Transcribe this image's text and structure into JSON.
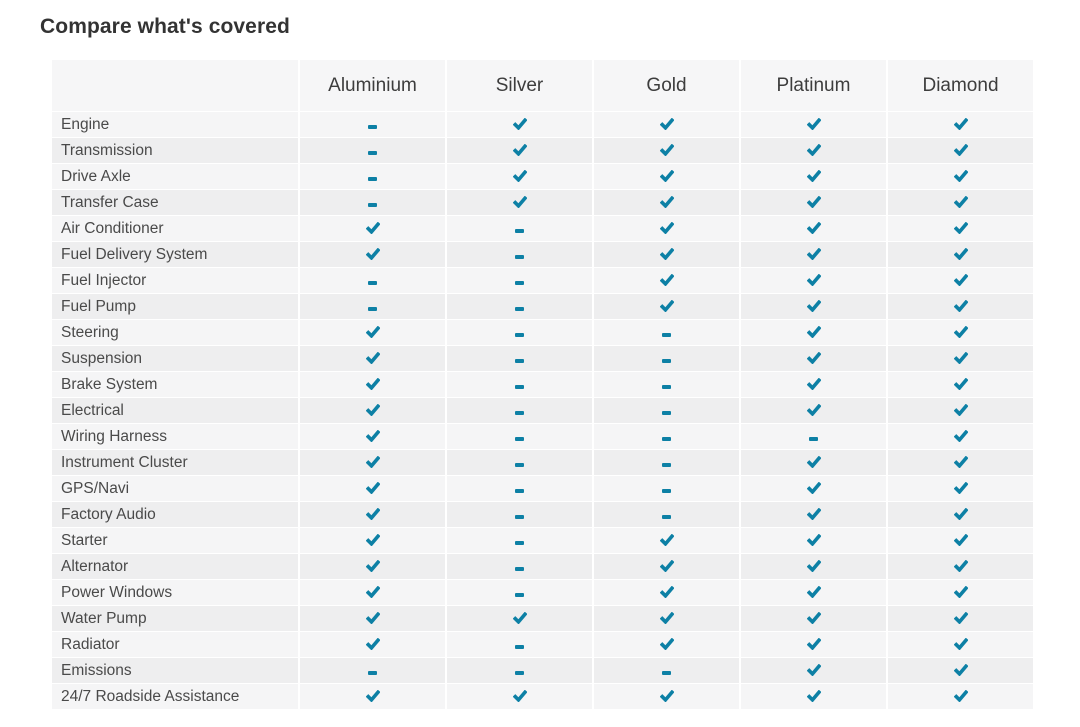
{
  "page": {
    "title": "Compare what's covered"
  },
  "colors": {
    "accent": "#0d80a5",
    "header_bg": "#f6f6f7",
    "row_odd_bg": "#f5f5f6",
    "row_even_bg": "#eeeeef",
    "title_text": "#333333",
    "label_text": "#4a4a4a"
  },
  "icons": {
    "covered": "check-icon",
    "not_covered": "dash-icon"
  },
  "table": {
    "columns": [
      "Aluminium",
      "Silver",
      "Gold",
      "Platinum",
      "Diamond"
    ],
    "rows": [
      {
        "label": "Engine",
        "covered": [
          false,
          true,
          true,
          true,
          true
        ]
      },
      {
        "label": "Transmission",
        "covered": [
          false,
          true,
          true,
          true,
          true
        ]
      },
      {
        "label": "Drive Axle",
        "covered": [
          false,
          true,
          true,
          true,
          true
        ]
      },
      {
        "label": "Transfer Case",
        "covered": [
          false,
          true,
          true,
          true,
          true
        ]
      },
      {
        "label": "Air Conditioner",
        "covered": [
          true,
          false,
          true,
          true,
          true
        ]
      },
      {
        "label": "Fuel Delivery System",
        "covered": [
          true,
          false,
          true,
          true,
          true
        ]
      },
      {
        "label": "Fuel Injector",
        "covered": [
          false,
          false,
          true,
          true,
          true
        ]
      },
      {
        "label": "Fuel Pump",
        "covered": [
          false,
          false,
          true,
          true,
          true
        ]
      },
      {
        "label": "Steering",
        "covered": [
          true,
          false,
          false,
          true,
          true
        ]
      },
      {
        "label": "Suspension",
        "covered": [
          true,
          false,
          false,
          true,
          true
        ]
      },
      {
        "label": "Brake System",
        "covered": [
          true,
          false,
          false,
          true,
          true
        ]
      },
      {
        "label": "Electrical",
        "covered": [
          true,
          false,
          false,
          true,
          true
        ]
      },
      {
        "label": "Wiring Harness",
        "covered": [
          true,
          false,
          false,
          false,
          true
        ]
      },
      {
        "label": "Instrument Cluster",
        "covered": [
          true,
          false,
          false,
          true,
          true
        ]
      },
      {
        "label": "GPS/Navi",
        "covered": [
          true,
          false,
          false,
          true,
          true
        ]
      },
      {
        "label": "Factory Audio",
        "covered": [
          true,
          false,
          false,
          true,
          true
        ]
      },
      {
        "label": "Starter",
        "covered": [
          true,
          false,
          true,
          true,
          true
        ]
      },
      {
        "label": "Alternator",
        "covered": [
          true,
          false,
          true,
          true,
          true
        ]
      },
      {
        "label": "Power Windows",
        "covered": [
          true,
          false,
          true,
          true,
          true
        ]
      },
      {
        "label": "Water Pump",
        "covered": [
          true,
          true,
          true,
          true,
          true
        ]
      },
      {
        "label": "Radiator",
        "covered": [
          true,
          false,
          true,
          true,
          true
        ]
      },
      {
        "label": "Emissions",
        "covered": [
          false,
          false,
          false,
          true,
          true
        ]
      },
      {
        "label": "24/7 Roadside Assistance",
        "covered": [
          true,
          true,
          true,
          true,
          true
        ]
      }
    ]
  }
}
